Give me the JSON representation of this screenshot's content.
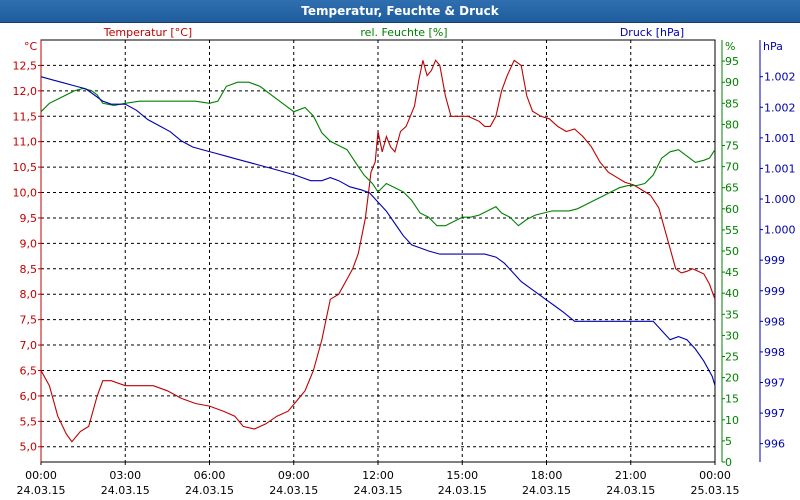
{
  "chart_data": {
    "type": "line",
    "title": "Temperatur, Feuchte & Druck",
    "x": {
      "label": "",
      "ticks": [
        {
          "time": "00:00",
          "date": "24.03.15"
        },
        {
          "time": "03:00",
          "date": "24.03.15"
        },
        {
          "time": "06:00",
          "date": "24.03.15"
        },
        {
          "time": "09:00",
          "date": "24.03.15"
        },
        {
          "time": "12:00",
          "date": "24.03.15"
        },
        {
          "time": "15:00",
          "date": "24.03.15"
        },
        {
          "time": "18:00",
          "date": "24.03.15"
        },
        {
          "time": "21:00",
          "date": "24.03.15"
        },
        {
          "time": "00:00",
          "date": "25.03.15"
        }
      ],
      "range_hours": [
        0,
        24
      ]
    },
    "axes": {
      "temperature": {
        "unit": "°C",
        "label": "Temperatur [°C]",
        "range": [
          4.7,
          13.0
        ],
        "ticks": [
          "5,0",
          "5,5",
          "6,0",
          "6,5",
          "7,0",
          "7,5",
          "8,0",
          "8,5",
          "9,0",
          "9,5",
          "10,0",
          "10,5",
          "11,0",
          "11,5",
          "12,0",
          "12,5"
        ]
      },
      "humidity": {
        "unit": "%",
        "label": "rel. Feuchte [%]",
        "range": [
          0,
          100
        ],
        "ticks": [
          "0",
          "5",
          "10",
          "15",
          "20",
          "25",
          "30",
          "35",
          "40",
          "45",
          "50",
          "55",
          "60",
          "65",
          "70",
          "75",
          "80",
          "85",
          "90",
          "95"
        ]
      },
      "pressure": {
        "unit": "hPa",
        "label": "Druck [hPa]",
        "range": [
          995.7,
          1002.6
        ],
        "ticks": [
          "996",
          "997",
          "997",
          "998",
          "998",
          "999",
          "999",
          "1.000",
          "1.000",
          "1.001",
          "1.001",
          "1.002",
          "1.002"
        ],
        "tick_values": [
          996.0,
          996.5,
          997.0,
          997.5,
          998.0,
          998.5,
          999.0,
          999.5,
          1000.0,
          1000.5,
          1001.0,
          1001.5,
          1002.0
        ]
      }
    },
    "series": [
      {
        "name": "Temperatur [°C]",
        "axis": "temperature",
        "color": "#c00000",
        "points": [
          [
            0,
            6.5
          ],
          [
            0.3,
            6.2
          ],
          [
            0.6,
            5.6
          ],
          [
            0.9,
            5.25
          ],
          [
            1.1,
            5.1
          ],
          [
            1.4,
            5.3
          ],
          [
            1.7,
            5.4
          ],
          [
            2.0,
            6.0
          ],
          [
            2.2,
            6.3
          ],
          [
            2.5,
            6.3
          ],
          [
            3.0,
            6.2
          ],
          [
            3.5,
            6.2
          ],
          [
            4.0,
            6.2
          ],
          [
            4.5,
            6.1
          ],
          [
            5.0,
            5.95
          ],
          [
            5.5,
            5.85
          ],
          [
            6.0,
            5.8
          ],
          [
            6.5,
            5.7
          ],
          [
            6.9,
            5.6
          ],
          [
            7.2,
            5.4
          ],
          [
            7.6,
            5.35
          ],
          [
            8.0,
            5.45
          ],
          [
            8.4,
            5.6
          ],
          [
            8.8,
            5.7
          ],
          [
            9.1,
            5.9
          ],
          [
            9.4,
            6.1
          ],
          [
            9.7,
            6.5
          ],
          [
            10.0,
            7.1
          ],
          [
            10.3,
            7.9
          ],
          [
            10.6,
            8.0
          ],
          [
            10.9,
            8.3
          ],
          [
            11.1,
            8.5
          ],
          [
            11.3,
            8.8
          ],
          [
            11.55,
            9.5
          ],
          [
            11.75,
            10.4
          ],
          [
            11.9,
            10.6
          ],
          [
            12.0,
            11.2
          ],
          [
            12.15,
            10.8
          ],
          [
            12.3,
            11.1
          ],
          [
            12.45,
            10.9
          ],
          [
            12.6,
            10.8
          ],
          [
            12.8,
            11.2
          ],
          [
            13.0,
            11.3
          ],
          [
            13.15,
            11.5
          ],
          [
            13.3,
            11.7
          ],
          [
            13.45,
            12.2
          ],
          [
            13.6,
            12.6
          ],
          [
            13.75,
            12.3
          ],
          [
            13.9,
            12.4
          ],
          [
            14.05,
            12.6
          ],
          [
            14.2,
            12.5
          ],
          [
            14.4,
            11.9
          ],
          [
            14.6,
            11.5
          ],
          [
            14.9,
            11.5
          ],
          [
            15.2,
            11.5
          ],
          [
            15.4,
            11.45
          ],
          [
            15.6,
            11.4
          ],
          [
            15.8,
            11.3
          ],
          [
            16.0,
            11.3
          ],
          [
            16.2,
            11.5
          ],
          [
            16.4,
            12.0
          ],
          [
            16.6,
            12.3
          ],
          [
            16.85,
            12.6
          ],
          [
            17.1,
            12.5
          ],
          [
            17.3,
            11.9
          ],
          [
            17.5,
            11.6
          ],
          [
            17.8,
            11.5
          ],
          [
            18.1,
            11.45
          ],
          [
            18.4,
            11.3
          ],
          [
            18.7,
            11.2
          ],
          [
            19.0,
            11.25
          ],
          [
            19.3,
            11.1
          ],
          [
            19.6,
            10.9
          ],
          [
            19.9,
            10.6
          ],
          [
            20.2,
            10.4
          ],
          [
            20.5,
            10.3
          ],
          [
            20.8,
            10.2
          ],
          [
            21.1,
            10.15
          ],
          [
            21.4,
            10.05
          ],
          [
            21.7,
            9.95
          ],
          [
            22.0,
            9.7
          ],
          [
            22.2,
            9.3
          ],
          [
            22.4,
            8.9
          ],
          [
            22.6,
            8.5
          ],
          [
            22.8,
            8.42
          ],
          [
            23.0,
            8.45
          ],
          [
            23.2,
            8.5
          ],
          [
            23.4,
            8.45
          ],
          [
            23.6,
            8.4
          ],
          [
            23.8,
            8.2
          ],
          [
            24.0,
            7.9
          ]
        ]
      },
      {
        "name": "rel. Feuchte [%]",
        "axis": "humidity",
        "color": "#008000",
        "points": [
          [
            0,
            83
          ],
          [
            0.3,
            85
          ],
          [
            0.6,
            86
          ],
          [
            0.9,
            87
          ],
          [
            1.2,
            88
          ],
          [
            1.5,
            88.5
          ],
          [
            1.8,
            88
          ],
          [
            2.0,
            87
          ],
          [
            2.2,
            85
          ],
          [
            2.6,
            84.5
          ],
          [
            3.0,
            85
          ],
          [
            3.5,
            85.5
          ],
          [
            4.0,
            85.5
          ],
          [
            4.5,
            85.5
          ],
          [
            5.0,
            85.5
          ],
          [
            5.5,
            85.5
          ],
          [
            6.0,
            85
          ],
          [
            6.3,
            85.5
          ],
          [
            6.6,
            89
          ],
          [
            7.0,
            90
          ],
          [
            7.4,
            90
          ],
          [
            7.8,
            89
          ],
          [
            8.2,
            87
          ],
          [
            8.6,
            85
          ],
          [
            9.0,
            83
          ],
          [
            9.4,
            84
          ],
          [
            9.7,
            82
          ],
          [
            10.0,
            78
          ],
          [
            10.3,
            76
          ],
          [
            10.6,
            75
          ],
          [
            10.9,
            74
          ],
          [
            11.2,
            71
          ],
          [
            11.5,
            68
          ],
          [
            11.8,
            66
          ],
          [
            12.0,
            64
          ],
          [
            12.3,
            66
          ],
          [
            12.6,
            65
          ],
          [
            12.9,
            64
          ],
          [
            13.2,
            62
          ],
          [
            13.5,
            59
          ],
          [
            13.8,
            58
          ],
          [
            14.1,
            56
          ],
          [
            14.4,
            56
          ],
          [
            14.7,
            57
          ],
          [
            15.0,
            58
          ],
          [
            15.3,
            58
          ],
          [
            15.6,
            58.5
          ],
          [
            15.9,
            59.5
          ],
          [
            16.2,
            60.5
          ],
          [
            16.4,
            59
          ],
          [
            16.7,
            58
          ],
          [
            17.0,
            56
          ],
          [
            17.3,
            57.5
          ],
          [
            17.6,
            58.5
          ],
          [
            17.9,
            59
          ],
          [
            18.2,
            59.5
          ],
          [
            18.5,
            59.5
          ],
          [
            18.8,
            59.5
          ],
          [
            19.1,
            60
          ],
          [
            19.4,
            61
          ],
          [
            19.7,
            62
          ],
          [
            20.0,
            63
          ],
          [
            20.3,
            64
          ],
          [
            20.6,
            65
          ],
          [
            20.9,
            65.5
          ],
          [
            21.2,
            65.5
          ],
          [
            21.5,
            66
          ],
          [
            21.8,
            68
          ],
          [
            22.1,
            72
          ],
          [
            22.4,
            73.5
          ],
          [
            22.7,
            74
          ],
          [
            23.0,
            72.5
          ],
          [
            23.3,
            71
          ],
          [
            23.6,
            71.5
          ],
          [
            23.8,
            72
          ],
          [
            24.0,
            74
          ]
        ]
      },
      {
        "name": "Druck [hPa]",
        "axis": "pressure",
        "color": "#0000b0",
        "points": [
          [
            0,
            1002.0
          ],
          [
            0.4,
            1001.95
          ],
          [
            0.8,
            1001.9
          ],
          [
            1.2,
            1001.85
          ],
          [
            1.6,
            1001.8
          ],
          [
            1.9,
            1001.7
          ],
          [
            2.2,
            1001.6
          ],
          [
            2.5,
            1001.55
          ],
          [
            3.0,
            1001.55
          ],
          [
            3.4,
            1001.45
          ],
          [
            3.8,
            1001.3
          ],
          [
            4.2,
            1001.2
          ],
          [
            4.6,
            1001.1
          ],
          [
            5.0,
            1000.95
          ],
          [
            5.4,
            1000.85
          ],
          [
            5.8,
            1000.8
          ],
          [
            6.2,
            1000.75
          ],
          [
            6.6,
            1000.7
          ],
          [
            7.0,
            1000.65
          ],
          [
            7.4,
            1000.6
          ],
          [
            7.8,
            1000.55
          ],
          [
            8.2,
            1000.5
          ],
          [
            8.6,
            1000.45
          ],
          [
            9.0,
            1000.4
          ],
          [
            9.3,
            1000.35
          ],
          [
            9.6,
            1000.3
          ],
          [
            10.0,
            1000.3
          ],
          [
            10.3,
            1000.35
          ],
          [
            10.6,
            1000.3
          ],
          [
            11.0,
            1000.2
          ],
          [
            11.4,
            1000.15
          ],
          [
            11.7,
            1000.1
          ],
          [
            12.0,
            999.95
          ],
          [
            12.3,
            999.8
          ],
          [
            12.6,
            999.6
          ],
          [
            12.9,
            999.4
          ],
          [
            13.2,
            999.25
          ],
          [
            13.5,
            999.2
          ],
          [
            13.8,
            999.15
          ],
          [
            14.2,
            999.1
          ],
          [
            14.6,
            999.1
          ],
          [
            15.0,
            999.1
          ],
          [
            15.4,
            999.1
          ],
          [
            15.8,
            999.1
          ],
          [
            16.2,
            999.05
          ],
          [
            16.5,
            998.95
          ],
          [
            16.8,
            998.8
          ],
          [
            17.1,
            998.65
          ],
          [
            17.4,
            998.55
          ],
          [
            17.7,
            998.45
          ],
          [
            18.0,
            998.35
          ],
          [
            18.3,
            998.25
          ],
          [
            18.6,
            998.15
          ],
          [
            19.0,
            998.0
          ],
          [
            19.4,
            998.0
          ],
          [
            19.8,
            998.0
          ],
          [
            20.2,
            998.0
          ],
          [
            20.6,
            998.0
          ],
          [
            21.0,
            998.0
          ],
          [
            21.4,
            998.0
          ],
          [
            21.8,
            998.0
          ],
          [
            22.1,
            997.85
          ],
          [
            22.4,
            997.7
          ],
          [
            22.7,
            997.75
          ],
          [
            23.0,
            997.7
          ],
          [
            23.3,
            997.55
          ],
          [
            23.6,
            997.35
          ],
          [
            23.9,
            997.1
          ],
          [
            24.0,
            996.95
          ]
        ]
      }
    ],
    "grid": true,
    "legend": "top"
  }
}
